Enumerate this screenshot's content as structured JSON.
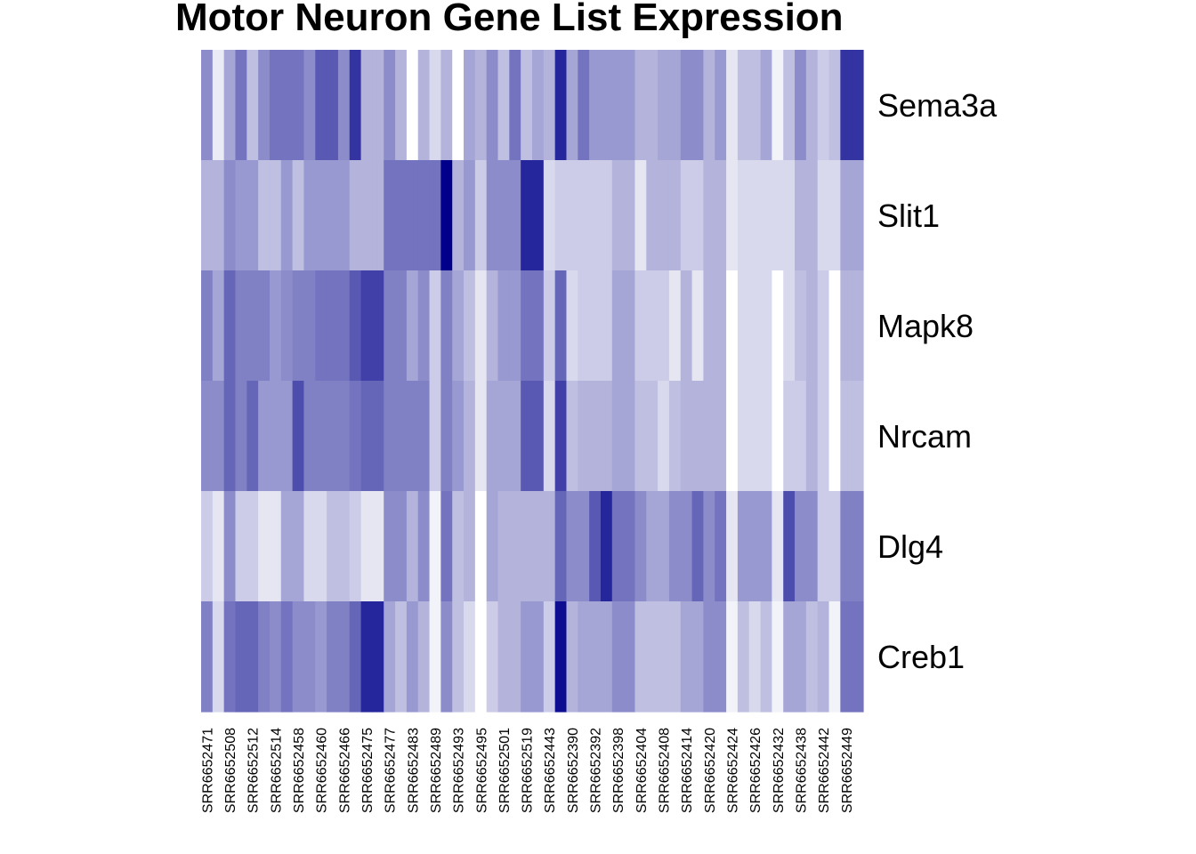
{
  "chart_data": {
    "type": "heatmap",
    "title": "Motor Neuron Gene List Expression",
    "rows": [
      "Sema3a",
      "Slit1",
      "Mapk8",
      "Nrcam",
      "Dlg4",
      "Creb1"
    ],
    "columns": [
      "SRR6652471",
      "",
      "SRR6652508",
      "",
      "SRR6652512",
      "",
      "SRR6652514",
      "",
      "SRR6652458",
      "",
      "SRR6652460",
      "",
      "SRR6652466",
      "",
      "SRR6652475",
      "",
      "SRR6652477",
      "",
      "SRR6652483",
      "",
      "SRR6652489",
      "",
      "SRR6652493",
      "",
      "SRR6652495",
      "",
      "SRR6652501",
      "",
      "SRR6652519",
      "",
      "SRR6652443",
      "",
      "SRR6652390",
      "",
      "SRR6652392",
      "",
      "SRR6652398",
      "",
      "SRR6652404",
      "",
      "SRR6652408",
      "",
      "SRR6652414",
      "",
      "SRR6652420",
      "",
      "SRR6652424",
      "",
      "SRR6652426",
      "",
      "SRR6652432",
      "",
      "SRR6652438",
      "",
      "SRR6652442",
      "",
      "SRR6652449",
      ""
    ],
    "color_scale": {
      "low": "#ffffff",
      "high": "#00008b"
    },
    "values": [
      [
        0.45,
        0.08,
        0.35,
        0.55,
        0.25,
        0.45,
        0.55,
        0.55,
        0.55,
        0.45,
        0.65,
        0.65,
        0.45,
        0.8,
        0.3,
        0.3,
        0.45,
        0.3,
        0.0,
        0.3,
        0.15,
        0.3,
        0.0,
        0.35,
        0.3,
        0.45,
        0.25,
        0.55,
        0.25,
        0.35,
        0.3,
        0.85,
        0.35,
        0.55,
        0.4,
        0.4,
        0.4,
        0.4,
        0.3,
        0.3,
        0.35,
        0.35,
        0.45,
        0.45,
        0.3,
        0.4,
        0.1,
        0.25,
        0.25,
        0.35,
        0.05,
        0.25,
        0.45,
        0.3,
        0.2,
        0.25,
        0.8,
        0.8
      ],
      [
        0.3,
        0.3,
        0.45,
        0.4,
        0.4,
        0.25,
        0.25,
        0.4,
        0.25,
        0.4,
        0.4,
        0.4,
        0.4,
        0.3,
        0.3,
        0.3,
        0.55,
        0.55,
        0.55,
        0.55,
        0.55,
        1.0,
        0.3,
        0.4,
        0.2,
        0.45,
        0.45,
        0.45,
        0.85,
        0.85,
        0.15,
        0.2,
        0.2,
        0.2,
        0.2,
        0.2,
        0.3,
        0.3,
        0.1,
        0.3,
        0.3,
        0.3,
        0.2,
        0.2,
        0.3,
        0.3,
        0.1,
        0.15,
        0.15,
        0.15,
        0.15,
        0.15,
        0.3,
        0.3,
        0.15,
        0.15,
        0.35,
        0.35
      ],
      [
        0.5,
        0.35,
        0.6,
        0.5,
        0.5,
        0.5,
        0.4,
        0.45,
        0.5,
        0.5,
        0.55,
        0.55,
        0.55,
        0.65,
        0.75,
        0.75,
        0.5,
        0.5,
        0.35,
        0.45,
        0.2,
        0.5,
        0.35,
        0.25,
        0.1,
        0.3,
        0.4,
        0.4,
        0.55,
        0.55,
        0.2,
        0.6,
        0.15,
        0.2,
        0.2,
        0.2,
        0.35,
        0.35,
        0.2,
        0.2,
        0.2,
        0.1,
        0.3,
        0.1,
        0.3,
        0.3,
        0.0,
        0.15,
        0.15,
        0.15,
        0.0,
        0.15,
        0.25,
        0.3,
        0.2,
        0.0,
        0.3,
        0.3
      ],
      [
        0.45,
        0.45,
        0.6,
        0.5,
        0.6,
        0.4,
        0.4,
        0.4,
        0.7,
        0.5,
        0.5,
        0.5,
        0.5,
        0.55,
        0.6,
        0.6,
        0.5,
        0.5,
        0.5,
        0.5,
        0.2,
        0.5,
        0.4,
        0.3,
        0.1,
        0.35,
        0.35,
        0.35,
        0.65,
        0.65,
        0.15,
        0.75,
        0.25,
        0.3,
        0.3,
        0.3,
        0.35,
        0.35,
        0.25,
        0.25,
        0.15,
        0.25,
        0.3,
        0.3,
        0.3,
        0.3,
        0.0,
        0.15,
        0.15,
        0.15,
        0.0,
        0.2,
        0.2,
        0.3,
        0.2,
        0.0,
        0.25,
        0.25
      ],
      [
        0.2,
        0.1,
        0.45,
        0.2,
        0.2,
        0.1,
        0.1,
        0.35,
        0.35,
        0.15,
        0.15,
        0.25,
        0.25,
        0.2,
        0.1,
        0.1,
        0.45,
        0.45,
        0.3,
        0.45,
        0.05,
        0.55,
        0.25,
        0.3,
        0.0,
        0.35,
        0.3,
        0.3,
        0.3,
        0.3,
        0.3,
        0.6,
        0.45,
        0.45,
        0.65,
        0.85,
        0.55,
        0.55,
        0.45,
        0.35,
        0.35,
        0.45,
        0.45,
        0.6,
        0.45,
        0.55,
        0.1,
        0.4,
        0.4,
        0.4,
        0.1,
        0.7,
        0.45,
        0.45,
        0.2,
        0.2,
        0.5,
        0.5
      ],
      [
        0.5,
        0.15,
        0.55,
        0.6,
        0.6,
        0.5,
        0.45,
        0.55,
        0.45,
        0.45,
        0.4,
        0.5,
        0.5,
        0.6,
        0.85,
        0.85,
        0.35,
        0.25,
        0.4,
        0.3,
        0.05,
        0.45,
        0.25,
        0.15,
        0.0,
        0.2,
        0.3,
        0.3,
        0.4,
        0.4,
        0.2,
        0.95,
        0.3,
        0.35,
        0.35,
        0.35,
        0.45,
        0.45,
        0.25,
        0.25,
        0.25,
        0.25,
        0.35,
        0.35,
        0.45,
        0.45,
        0.05,
        0.25,
        0.15,
        0.25,
        0.05,
        0.35,
        0.35,
        0.25,
        0.3,
        0.05,
        0.55,
        0.55
      ]
    ]
  }
}
